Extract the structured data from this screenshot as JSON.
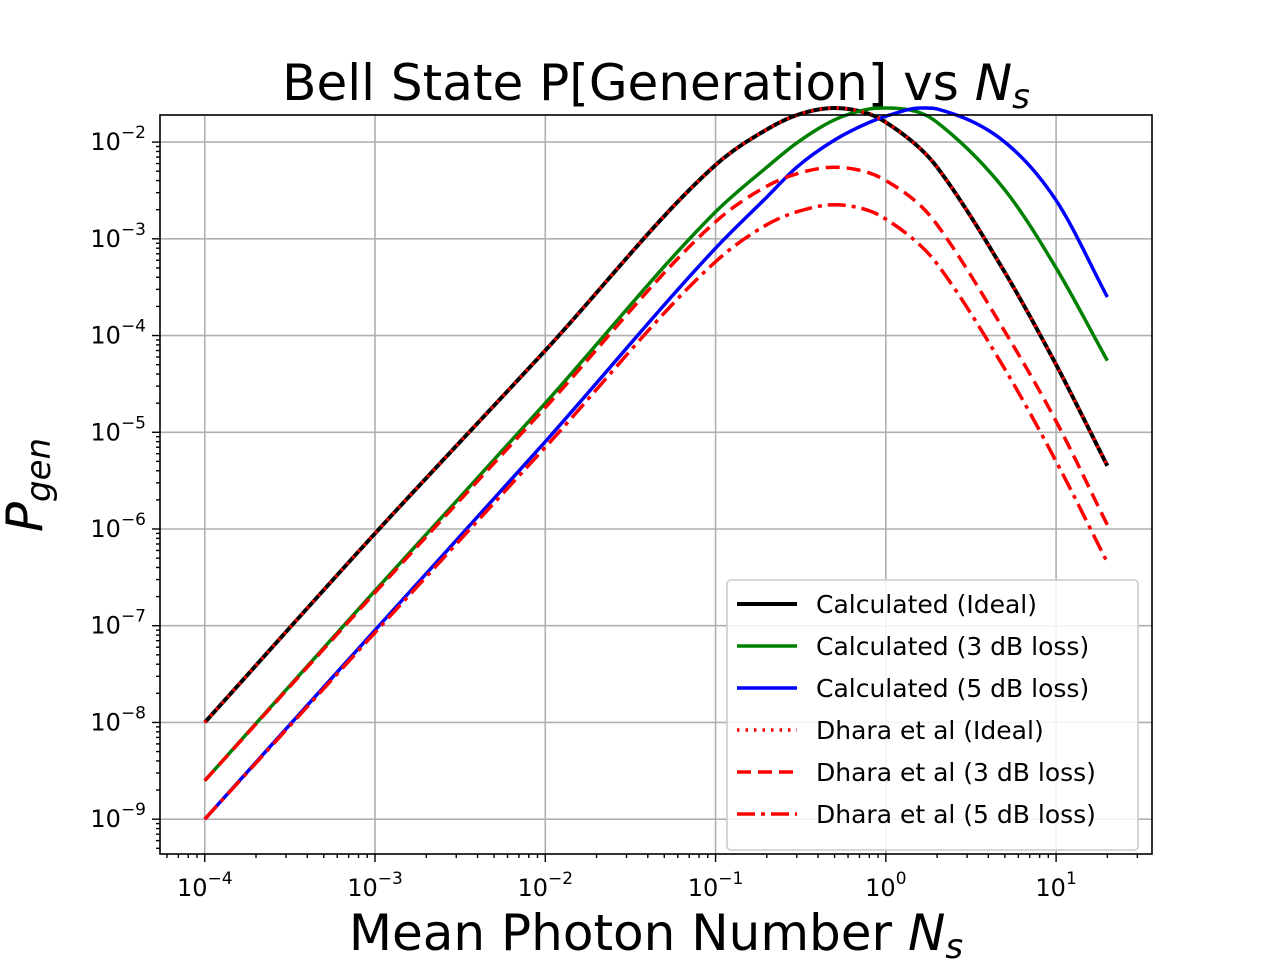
{
  "chart_data": {
    "type": "line",
    "title": "Bell State P[Generation] vs",
    "title_math": "N",
    "title_math_sub": "s",
    "xlabel": "Mean Photon Number",
    "xlabel_math": "N",
    "xlabel_math_sub": "s",
    "ylabel_math": "P",
    "ylabel_math_sub": "gen",
    "xscale": "log",
    "yscale": "log",
    "xlim_exp": [
      -4.2628,
      1.5632
    ],
    "ylim_exp": [
      -9.36,
      -1.72
    ],
    "grid": true,
    "legend_position": "lower-right",
    "x_ticks": [
      {
        "base": "10",
        "exp": "−4",
        "value": 0.0001
      },
      {
        "base": "10",
        "exp": "−3",
        "value": 0.001
      },
      {
        "base": "10",
        "exp": "−2",
        "value": 0.01
      },
      {
        "base": "10",
        "exp": "−1",
        "value": 0.1
      },
      {
        "base": "10",
        "exp": "0",
        "value": 1
      },
      {
        "base": "10",
        "exp": "1",
        "value": 10
      }
    ],
    "y_ticks": [
      {
        "base": "10",
        "exp": "−9",
        "value": 1e-09
      },
      {
        "base": "10",
        "exp": "−8",
        "value": 1e-08
      },
      {
        "base": "10",
        "exp": "−7",
        "value": 1e-07
      },
      {
        "base": "10",
        "exp": "−6",
        "value": 1e-06
      },
      {
        "base": "10",
        "exp": "−5",
        "value": 1e-05
      },
      {
        "base": "10",
        "exp": "−4",
        "value": 0.0001
      },
      {
        "base": "10",
        "exp": "−3",
        "value": 0.001
      },
      {
        "base": "10",
        "exp": "−2",
        "value": 0.01
      }
    ],
    "x": [
      0.0001,
      0.001,
      0.01,
      0.1,
      0.2,
      0.3,
      0.5,
      0.8,
      1,
      1.6,
      2,
      5,
      10,
      20
    ],
    "series": [
      {
        "name": "Calculated (Ideal)",
        "color": "#000000",
        "dash": "solid",
        "width": 4,
        "values": [
          1e-08,
          9e-07,
          7e-05,
          0.0058,
          0.0135,
          0.019,
          0.0225,
          0.0195,
          0.016,
          0.0085,
          0.0055,
          0.00045,
          5e-05,
          4.5e-06
        ]
      },
      {
        "name": "Calculated (3 dB loss)",
        "color": "#008000",
        "dash": "solid",
        "width": 3.5,
        "values": [
          2.5e-09,
          2.3e-07,
          2e-05,
          0.0019,
          0.0055,
          0.0098,
          0.017,
          0.022,
          0.0225,
          0.02,
          0.016,
          0.0032,
          0.0005,
          5.5e-05
        ]
      },
      {
        "name": "Calculated (5 dB loss)",
        "color": "#0000ff",
        "dash": "solid",
        "width": 3.5,
        "values": [
          1e-09,
          9e-08,
          8e-06,
          0.0008,
          0.0027,
          0.0055,
          0.0105,
          0.016,
          0.0185,
          0.0225,
          0.022,
          0.01,
          0.0025,
          0.00025
        ]
      },
      {
        "name": "Dhara et al (Ideal)",
        "color": "#ff0000",
        "dash": "dotted",
        "width": 3.5,
        "values": [
          1e-08,
          9e-07,
          7e-05,
          0.0058,
          0.0135,
          0.019,
          0.0225,
          0.0195,
          0.016,
          0.0085,
          0.0055,
          0.00045,
          5e-05,
          4.5e-06
        ]
      },
      {
        "name": "Dhara et al (3 dB loss)",
        "color": "#ff0000",
        "dash": "dashed",
        "width": 3.5,
        "values": [
          2.5e-09,
          2.2e-07,
          1.8e-05,
          0.0015,
          0.0035,
          0.0047,
          0.0055,
          0.0048,
          0.004,
          0.0022,
          0.0014,
          0.00011,
          1.3e-05,
          1.1e-06
        ]
      },
      {
        "name": "Dhara et al (5 dB loss)",
        "color": "#ff0000",
        "dash": "dashdot",
        "width": 3.5,
        "values": [
          1e-09,
          8.5e-08,
          7e-06,
          0.00058,
          0.0014,
          0.0019,
          0.00225,
          0.00195,
          0.0016,
          0.00085,
          0.00055,
          4.5e-05,
          5e-06,
          4.5e-07
        ]
      }
    ]
  }
}
